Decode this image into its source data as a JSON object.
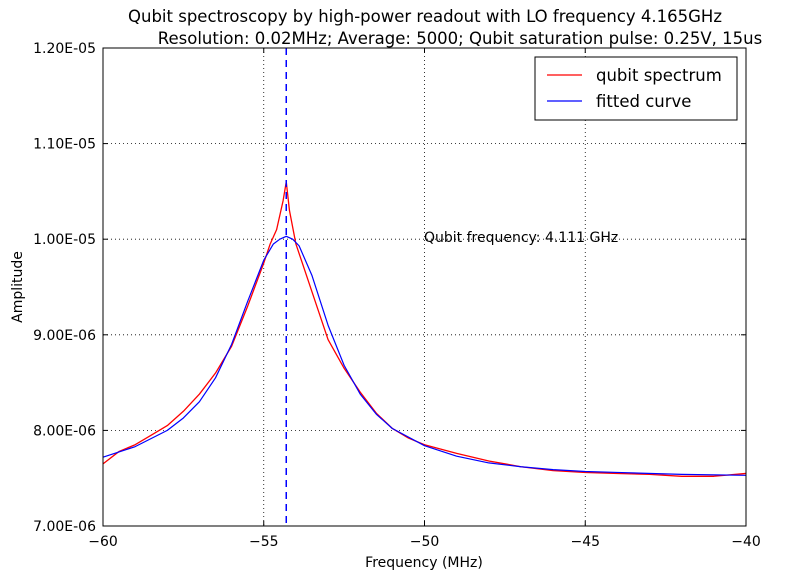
{
  "chart_data": {
    "type": "line",
    "title": "Qubit spectroscopy by high-power readout with LO frequency 4.165GHz",
    "subtitle": "Resolution: 0.02MHz; Average: 5000; Qubit saturation pulse: 0.25V, 15us",
    "xlabel": "Frequency (MHz)",
    "ylabel": "Amplitude",
    "xlim": [
      -60,
      -40
    ],
    "ylim": [
      7e-06,
      1.2e-05
    ],
    "x_ticks": [
      -60,
      -55,
      -50,
      -45,
      -40
    ],
    "x_tick_labels": [
      "−60",
      "−55",
      "−50",
      "−45",
      "−40"
    ],
    "y_ticks": [
      7e-06,
      8e-06,
      9e-06,
      1e-05,
      1.1e-05,
      1.2e-05
    ],
    "y_tick_labels": [
      "7.00E-06",
      "8.00E-06",
      "9.00E-06",
      "1.00E-05",
      "1.10E-05",
      "1.20E-05"
    ],
    "grid": true,
    "legend_position": "top-right",
    "annotation": {
      "text": "Qubit frequency: 4.111 GHz",
      "x": -50.0,
      "y": 1e-05
    },
    "vline": {
      "x": -54.3,
      "color": "#0000ff",
      "style": "dashed"
    },
    "series": [
      {
        "name": "qubit spectrum",
        "color": "#ff0000",
        "x": [
          -60.0,
          -59.5,
          -59.0,
          -58.5,
          -58.0,
          -57.5,
          -57.0,
          -56.5,
          -56.0,
          -55.5,
          -55.0,
          -54.8,
          -54.6,
          -54.4,
          -54.3,
          -54.2,
          -54.0,
          -53.8,
          -53.5,
          -53.0,
          -52.5,
          -52.0,
          -51.5,
          -51.0,
          -50.5,
          -50.0,
          -49.0,
          -48.0,
          -47.0,
          -46.0,
          -45.0,
          -44.0,
          -43.0,
          -42.0,
          -41.0,
          -40.0
        ],
        "values": [
          7.65e-06,
          7.78e-06,
          7.85e-06,
          7.95e-06,
          8.05e-06,
          8.2e-06,
          8.38e-06,
          8.6e-06,
          8.88e-06,
          9.3e-06,
          9.75e-06,
          9.95e-06,
          1.01e-05,
          1.04e-05,
          1.06e-05,
          1.03e-05,
          9.95e-06,
          9.75e-06,
          9.45e-06,
          8.95e-06,
          8.65e-06,
          8.4e-06,
          8.18e-06,
          8.02e-06,
          7.92e-06,
          7.85e-06,
          7.76e-06,
          7.68e-06,
          7.62e-06,
          7.58e-06,
          7.56e-06,
          7.55e-06,
          7.54e-06,
          7.52e-06,
          7.52e-06,
          7.55e-06
        ]
      },
      {
        "name": "fitted curve",
        "color": "#0000ff",
        "x": [
          -60.0,
          -59.0,
          -58.0,
          -57.5,
          -57.0,
          -56.5,
          -56.0,
          -55.5,
          -55.0,
          -54.7,
          -54.5,
          -54.3,
          -54.1,
          -53.9,
          -53.5,
          -53.0,
          -52.5,
          -52.0,
          -51.5,
          -51.0,
          -50.0,
          -49.0,
          -48.0,
          -47.0,
          -46.0,
          -45.0,
          -44.0,
          -42.0,
          -40.0
        ],
        "values": [
          7.72e-06,
          7.83e-06,
          8e-06,
          8.13e-06,
          8.3e-06,
          8.55e-06,
          8.9e-06,
          9.35e-06,
          9.78e-06,
          9.95e-06,
          1e-05,
          1.003e-05,
          1e-05,
          9.93e-06,
          9.62e-06,
          9.1e-06,
          8.68e-06,
          8.38e-06,
          8.17e-06,
          8.02e-06,
          7.84e-06,
          7.73e-06,
          7.66e-06,
          7.62e-06,
          7.59e-06,
          7.57e-06,
          7.56e-06,
          7.54e-06,
          7.53e-06
        ]
      }
    ]
  }
}
